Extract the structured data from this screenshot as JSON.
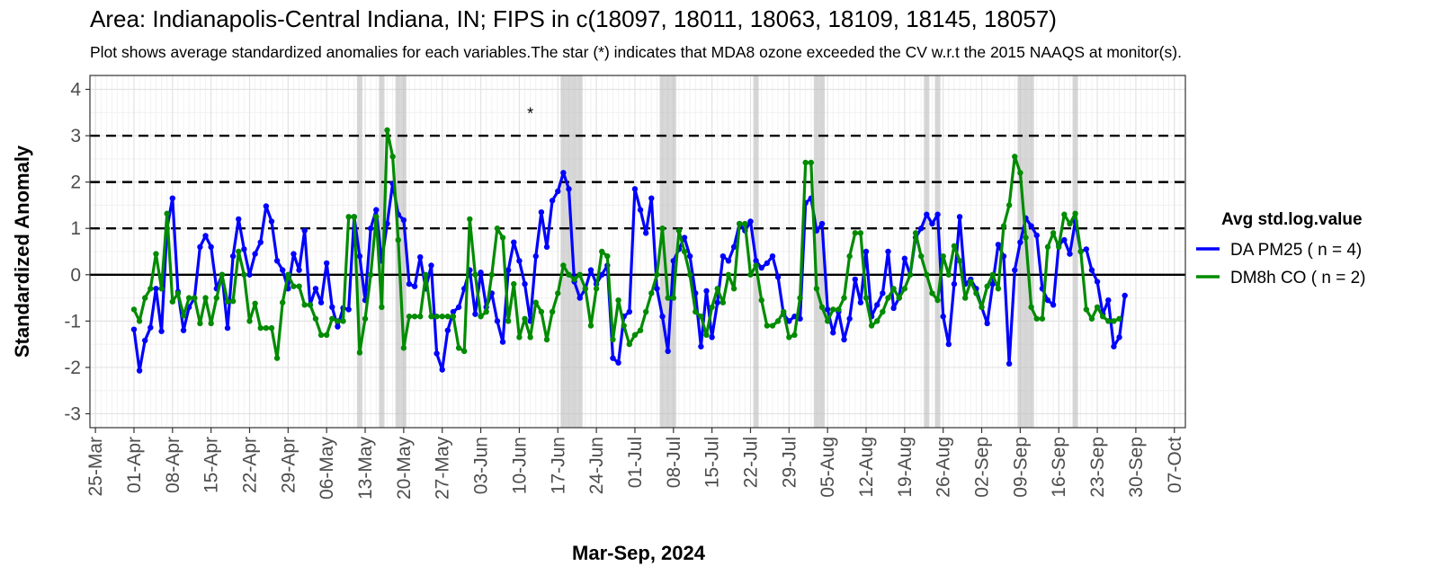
{
  "chart_data": {
    "type": "line",
    "title": "Area: Indianapolis-Central Indiana, IN; FIPS in c(18097, 18011, 18063, 18109, 18145, 18057)",
    "subtitle": "Plot shows average standardized anomalies for each variables.The star (*) indicates that MDA8 ozone exceeded the CV w.r.t the 2015 NAAQS at monitor(s).",
    "xlabel": "Mar-Sep, 2024",
    "ylabel": "Standardized Anomaly",
    "ylim": [
      -3.3,
      4.3
    ],
    "yticks": [
      -3,
      -2,
      -1,
      0,
      1,
      2,
      3,
      4
    ],
    "xlim": [
      "2024-03-24",
      "2024-10-09"
    ],
    "xticks": [
      "25-Mar",
      "01-Apr",
      "08-Apr",
      "15-Apr",
      "22-Apr",
      "29-Apr",
      "06-May",
      "13-May",
      "20-May",
      "27-May",
      "03-Jun",
      "10-Jun",
      "17-Jun",
      "24-Jun",
      "01-Jul",
      "08-Jul",
      "15-Jul",
      "22-Jul",
      "29-Jul",
      "05-Aug",
      "12-Aug",
      "19-Aug",
      "26-Aug",
      "02-Sep",
      "09-Sep",
      "16-Sep",
      "23-Sep",
      "30-Sep",
      "07-Oct"
    ],
    "xtick_dates": [
      "2024-03-25",
      "2024-04-01",
      "2024-04-08",
      "2024-04-15",
      "2024-04-22",
      "2024-04-29",
      "2024-05-06",
      "2024-05-13",
      "2024-05-20",
      "2024-05-27",
      "2024-06-03",
      "2024-06-10",
      "2024-06-17",
      "2024-06-24",
      "2024-07-01",
      "2024-07-08",
      "2024-07-15",
      "2024-07-22",
      "2024-07-29",
      "2024-08-05",
      "2024-08-12",
      "2024-08-19",
      "2024-08-26",
      "2024-09-02",
      "2024-09-09",
      "2024-09-16",
      "2024-09-23",
      "2024-09-30",
      "2024-10-07"
    ],
    "reference_lines": {
      "dashed": [
        1,
        2,
        3
      ],
      "solid": [
        0
      ]
    },
    "grid": true,
    "legend": {
      "title": "Avg std.log.value",
      "position": "right"
    },
    "exceedance_days": [
      "2024-05-12",
      "2024-05-16",
      "2024-05-19",
      "2024-05-20",
      "2024-06-18",
      "2024-06-19",
      "2024-06-20",
      "2024-06-21",
      "2024-07-06",
      "2024-07-07",
      "2024-07-08",
      "2024-07-23",
      "2024-08-03",
      "2024-08-04",
      "2024-08-23",
      "2024-08-25",
      "2024-09-09",
      "2024-09-10",
      "2024-09-11",
      "2024-09-19"
    ],
    "star_annotation": {
      "date": "2024-06-12",
      "y": 3.55,
      "text": "*"
    },
    "series": [
      {
        "name": "DA PM25 ( n = 4)",
        "color": "#0000ff",
        "start_date": "2024-04-01",
        "values": [
          -1.18,
          -2.07,
          -1.42,
          -1.14,
          -0.3,
          -1.22,
          1.0,
          1.65,
          -0.37,
          -1.2,
          -0.7,
          -0.5,
          0.6,
          0.84,
          0.6,
          -0.3,
          0.0,
          -1.15,
          0.4,
          1.2,
          0.55,
          0.0,
          0.45,
          0.7,
          1.48,
          1.15,
          0.3,
          0.1,
          -0.3,
          0.45,
          0.1,
          0.95,
          -0.65,
          -0.3,
          -0.6,
          0.25,
          -0.7,
          -1.12,
          -0.72,
          -0.75,
          1.25,
          0.4,
          -0.55,
          1.0,
          1.4,
          0.3,
          1.1,
          1.97,
          1.3,
          1.18,
          -0.2,
          -0.25,
          0.38,
          -0.3,
          0.2,
          -1.7,
          -2.05,
          -1.2,
          -0.8,
          -0.7,
          -0.3,
          0.1,
          -0.85,
          0.05,
          -0.7,
          -0.4,
          -1.0,
          -1.45,
          0.1,
          0.7,
          0.3,
          -0.2,
          -1.0,
          0.4,
          1.35,
          0.6,
          1.6,
          1.8,
          2.2,
          1.85,
          -0.15,
          -0.5,
          -0.3,
          0.1,
          -0.2,
          0.0,
          0.2,
          -1.8,
          -1.9,
          -0.9,
          -0.8,
          1.85,
          1.4,
          0.9,
          1.65,
          -0.3,
          -0.9,
          -1.65,
          0.3,
          0.55,
          0.8,
          0.4,
          -0.4,
          -1.55,
          -0.35,
          -1.35,
          -0.6,
          0.4,
          0.3,
          0.6,
          1.1,
          0.95,
          1.15,
          0.3,
          0.15,
          0.25,
          0.4,
          -0.05,
          -0.85,
          -1.0,
          -0.9,
          -0.95,
          1.55,
          1.65,
          0.95,
          1.1,
          -0.75,
          -1.25,
          -0.8,
          -1.4,
          -0.95,
          -0.1,
          -0.6,
          0.5,
          -0.9,
          -0.65,
          -0.4,
          0.5,
          -0.72,
          -0.5,
          0.35,
          0.0,
          0.8,
          1.0,
          1.3,
          1.1,
          1.3,
          -0.9,
          -1.5,
          -0.2,
          1.25,
          -0.2,
          -0.1,
          -0.3,
          -0.7,
          -1.05,
          -0.2,
          0.65,
          0.4,
          -1.92,
          0.1,
          0.7,
          1.22,
          1.05,
          0.85,
          -0.3,
          -0.55,
          -0.65,
          0.65,
          0.75,
          0.45,
          1.15,
          0.5,
          0.55,
          0.1,
          -0.15,
          -0.85,
          -0.55,
          -1.55,
          -1.35,
          -0.45
        ]
      },
      {
        "name": "DM8h CO ( n = 2)",
        "color": "#008b00",
        "start_date": "2024-04-01",
        "values": [
          -0.75,
          -1.0,
          -0.5,
          -0.3,
          0.45,
          -0.3,
          1.32,
          -0.58,
          -0.4,
          -0.88,
          -0.5,
          -0.5,
          -1.05,
          -0.5,
          -1.05,
          -0.5,
          0.0,
          -0.58,
          -0.57,
          0.5,
          0.0,
          -1.0,
          -0.62,
          -1.15,
          -1.15,
          -1.15,
          -1.8,
          -0.6,
          0.0,
          -0.25,
          -0.25,
          -0.65,
          -0.65,
          -0.95,
          -1.3,
          -1.3,
          -0.95,
          -1.0,
          -1.0,
          1.25,
          1.25,
          -1.68,
          -0.95,
          0.0,
          1.25,
          -0.7,
          3.12,
          2.55,
          0.75,
          -1.58,
          -0.9,
          -0.9,
          -0.9,
          0.0,
          -0.9,
          -0.9,
          -0.9,
          -0.9,
          -0.9,
          -1.58,
          -1.65,
          1.2,
          0.0,
          -0.9,
          -0.8,
          0.0,
          1.0,
          0.8,
          -1.0,
          -0.2,
          -1.35,
          -0.95,
          -1.35,
          -0.6,
          -0.8,
          -1.4,
          -0.8,
          -0.4,
          0.2,
          0.0,
          -0.1,
          0.0,
          -0.3,
          -1.1,
          -0.3,
          0.5,
          0.4,
          -1.4,
          -0.55,
          -1.1,
          -1.5,
          -1.3,
          -1.2,
          -0.8,
          -0.4,
          0.0,
          1.0,
          -0.5,
          -0.5,
          0.95,
          0.5,
          0.0,
          -0.8,
          -0.9,
          -1.3,
          -0.7,
          -0.3,
          -0.6,
          0.0,
          -0.3,
          1.1,
          1.1,
          0.0,
          0.2,
          -0.55,
          -1.1,
          -1.1,
          -1.0,
          -0.8,
          -1.35,
          -1.3,
          -0.5,
          2.42,
          2.42,
          -0.3,
          -0.7,
          -1.0,
          -0.75,
          -0.75,
          -0.5,
          0.4,
          0.9,
          0.9,
          -0.5,
          -1.1,
          -1.0,
          -0.8,
          -0.5,
          -0.3,
          -0.5,
          -0.3,
          0.0,
          0.9,
          0.4,
          0.0,
          -0.4,
          -0.55,
          0.4,
          0.0,
          0.62,
          0.3,
          -0.5,
          -0.15,
          -0.4,
          -0.7,
          -0.25,
          0.0,
          -0.3,
          1.05,
          1.5,
          2.55,
          2.2,
          0.8,
          -0.7,
          -0.95,
          -0.95,
          0.6,
          0.9,
          0.6,
          1.3,
          1.1,
          1.32,
          0.5,
          -0.75,
          -0.95,
          -0.7,
          -0.9,
          -1.0,
          -1.0,
          -0.95
        ]
      }
    ]
  }
}
